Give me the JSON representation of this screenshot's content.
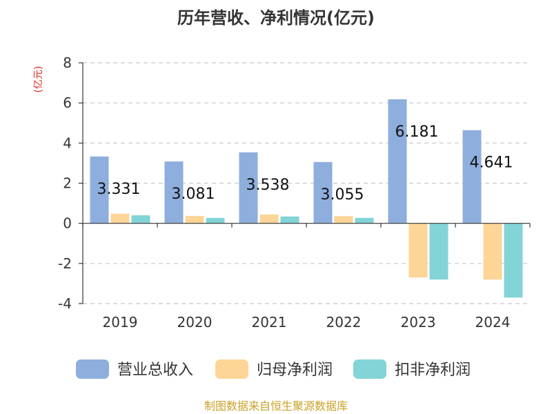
{
  "chart_data": {
    "type": "bar",
    "title": "历年营收、净利情况(亿元)",
    "unit_label": "(亿元)",
    "categories": [
      "2019",
      "2020",
      "2021",
      "2022",
      "2023",
      "2024"
    ],
    "series": [
      {
        "name": "营业总收入",
        "color": "#8eaedd",
        "values": [
          3.331,
          3.081,
          3.538,
          3.055,
          6.181,
          4.641
        ]
      },
      {
        "name": "归母净利润",
        "color": "#fdd597",
        "values": [
          0.48,
          0.37,
          0.44,
          0.36,
          -2.7,
          -2.8
        ]
      },
      {
        "name": "扣非净利润",
        "color": "#83d4d6",
        "values": [
          0.4,
          0.27,
          0.34,
          0.27,
          -2.8,
          -3.7
        ]
      }
    ],
    "data_labels": [
      "3.331",
      "3.081",
      "3.538",
      "3.055",
      "6.181",
      "4.641"
    ],
    "ylim": [
      -4,
      8
    ],
    "yticks": [
      "-4",
      "-2",
      "0",
      "2",
      "4",
      "6",
      "8"
    ],
    "grid": true,
    "legend_position": "bottom",
    "source": "制图数据来自恒生聚源数据库"
  }
}
